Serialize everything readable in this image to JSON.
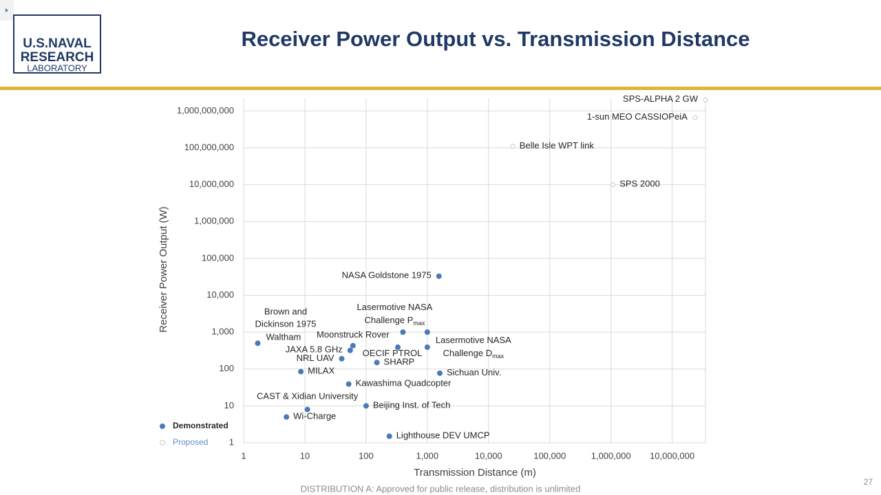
{
  "logo": {
    "lines": [
      "U.S.NAVAL",
      "RESEARCH",
      "LABORATORY"
    ]
  },
  "footer": "DISTRIBUTION A: Approved for public release, distribution is unlimited",
  "page_number": "27",
  "chart_data": {
    "type": "scatter",
    "title": "Receiver Power Output vs. Transmission Distance",
    "x_label": "Transmission Distance (m)",
    "y_label": "Receiver Power Output (W)",
    "log_x": true,
    "log_y": true,
    "grid": true,
    "legend": "lower left",
    "xlim": [
      1,
      35000000
    ],
    "ylim": [
      1,
      2200000000
    ],
    "xticks": [
      1,
      10,
      100,
      {
        "value": 1000,
        "label": "1,000"
      },
      {
        "value": 10000,
        "label": "10,000"
      },
      {
        "value": 100000,
        "label": "100,000"
      },
      {
        "value": 1000000,
        "label": "1,000,000"
      },
      {
        "value": 10000000,
        "label": "10,000,000"
      }
    ],
    "yticks": [
      1,
      10,
      100,
      {
        "value": 1000,
        "label": "1,000"
      },
      {
        "value": 10000,
        "label": "10,000"
      },
      {
        "value": 100000,
        "label": "100,000"
      },
      {
        "value": 1000000,
        "label": "1,000,000"
      },
      {
        "value": 10000000,
        "label": "10,000,000"
      },
      {
        "value": 100000000,
        "label": "100,000,000"
      },
      {
        "value": 1000000000,
        "label": "1,000,000,000"
      }
    ],
    "annotations": [
      [
        "Brown and",
        "Dickinson 1975"
      ]
    ],
    "series": [
      {
        "name": "Demonstrated",
        "color": "#4a7ab5",
        "filled": true,
        "x": [
          1.7,
          8.6,
          40,
          55,
          61,
          330,
          150,
          400,
          1000,
          1000,
          1550,
          1600,
          52,
          100,
          11,
          5,
          240
        ],
        "values": [
          500,
          85,
          190,
          320,
          430,
          390,
          150,
          1000,
          1000,
          390,
          33000,
          77,
          39,
          10,
          8,
          5,
          1.5
        ],
        "labels": [
          [
            "Waltham"
          ],
          [
            "MILAX"
          ],
          [
            "NRL UAV"
          ],
          [
            "JAXA 5.8 GHz"
          ],
          [
            "Moonstruck Rover"
          ],
          [
            "OECIF PTROL"
          ],
          [
            "SHARP"
          ],
          [
            "Lasermotive NASA",
            "Challenge P"
          ],
          null,
          [
            "Lasermotive NASA",
            "Challenge D"
          ],
          [
            "NASA Goldstone 1975"
          ],
          [
            "Sichuan Univ."
          ],
          [
            "Kawashima Quadcopter"
          ],
          [
            "Beijing Inst. of Tech"
          ],
          [
            "CAST & Xidian University"
          ],
          [
            "Wi-Charge"
          ],
          [
            "Lighthouse DEV UMCP"
          ]
        ],
        "label_subscripts": [
          null,
          null,
          null,
          null,
          null,
          null,
          null,
          "max",
          null,
          "max",
          null,
          null,
          null,
          null,
          null,
          null,
          null
        ]
      },
      {
        "name": "Proposed",
        "color": "#5b8fcc",
        "filled": false,
        "x": [
          35000000,
          23600000,
          24700,
          1070000
        ],
        "values": [
          2000000000,
          660000000,
          110000000,
          10000000
        ],
        "labels": [
          [
            "SPS-ALPHA 2 GW"
          ],
          [
            "1-sun MEO CASSIOPeiA"
          ],
          [
            "Belle Isle WPT link"
          ],
          [
            "SPS 2000"
          ]
        ],
        "label_subscripts": [
          null,
          null,
          null,
          null
        ]
      }
    ]
  }
}
